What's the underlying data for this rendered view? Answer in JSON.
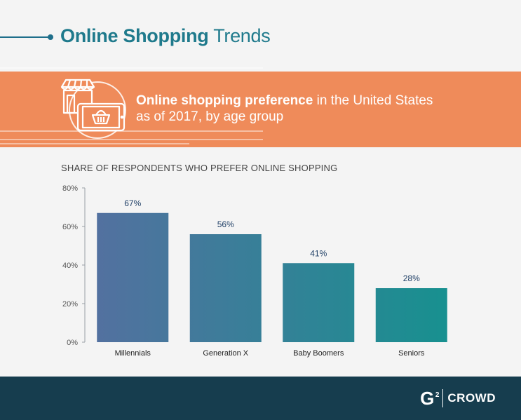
{
  "header": {
    "title_bold": "Online Shopping",
    "title_light": "Trends"
  },
  "banner": {
    "title_bold": "Online shopping preference",
    "title_rest": " in the United States",
    "line2": "as of 2017, by age group",
    "icon": "shop-and-tablet-basket-icon"
  },
  "colors": {
    "accent": "#1f7a8c",
    "banner": "#ef8b5a",
    "footer": "#163d4e",
    "bar_start": "#5470a0",
    "bar_end": "#16918f"
  },
  "chart_data": {
    "type": "bar",
    "title": "SHARE OF RESPONDENTS WHO PREFER ONLINE SHOPPING",
    "categories": [
      "Millennials",
      "Generation X",
      "Baby Boomers",
      "Seniors"
    ],
    "values": [
      67,
      56,
      41,
      28
    ],
    "value_labels": [
      "67%",
      "56%",
      "41%",
      "28%"
    ],
    "yticks": [
      "0%",
      "20%",
      "40%",
      "60%",
      "80%"
    ],
    "ytick_values": [
      0,
      20,
      40,
      60,
      80
    ],
    "ylim": [
      0,
      80
    ],
    "xlabel": "",
    "ylabel": "",
    "grid": false
  },
  "footer": {
    "brand_letter": "G",
    "brand_sup": "2",
    "brand_name": "CROWD"
  }
}
